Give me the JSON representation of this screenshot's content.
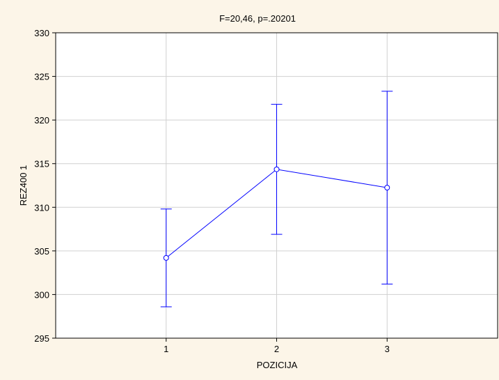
{
  "chart_data": {
    "type": "line",
    "title": "F=20,46, p=.20201",
    "xlabel": "POZICIJA",
    "ylabel": "REZ400 1",
    "categories": [
      "1",
      "2",
      "3"
    ],
    "series": [
      {
        "values": [
          304.2,
          314.35,
          312.25
        ],
        "error_low": [
          298.6,
          306.9,
          301.2
        ],
        "error_high": [
          309.8,
          321.8,
          323.3
        ]
      }
    ],
    "ylim": [
      295,
      330
    ],
    "yticks": [
      295,
      300,
      305,
      310,
      315,
      320,
      325,
      330
    ],
    "xlim": [
      0,
      4
    ],
    "grid": true,
    "colors": {
      "series": "#0000ff",
      "background": "#fcf5e8",
      "plot": "#ffffff",
      "grid": "#d0d0d0"
    }
  }
}
